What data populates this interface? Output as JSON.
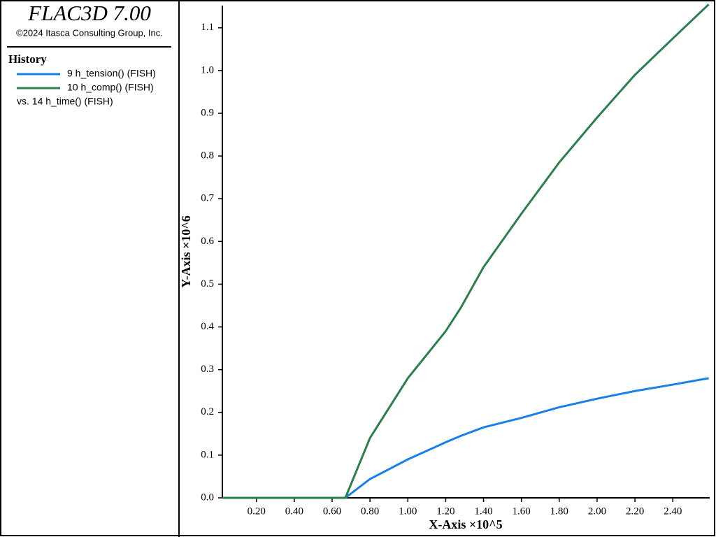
{
  "header": {
    "title": "FLAC3D 7.00",
    "copyright": "©2024 Itasca Consulting Group, Inc."
  },
  "legend": {
    "title": "History",
    "x_label": "vs. 14 h_time() (FISH)"
  },
  "chart_data": {
    "type": "line",
    "x_label": "X-Axis ×10^5",
    "y_label": "Y-Axis ×10^6",
    "x": [
      0.02,
      0.2,
      0.4,
      0.6,
      0.67,
      0.8,
      1.0,
      1.2,
      1.28,
      1.4,
      1.6,
      1.8,
      2.0,
      2.2,
      2.4,
      2.59
    ],
    "series": [
      {
        "name": "9 h_tension() (FISH)",
        "color": "#1a80e6",
        "values": [
          0,
          0,
          0,
          0,
          0,
          0.044,
          0.09,
          0.13,
          0.145,
          0.165,
          0.187,
          0.212,
          0.232,
          0.25,
          0.265,
          0.28
        ]
      },
      {
        "name": "10 h_comp() (FISH)",
        "color": "#2e7d4f",
        "values": [
          0,
          0,
          0,
          0,
          0,
          0.14,
          0.28,
          0.39,
          0.445,
          0.54,
          0.665,
          0.785,
          0.89,
          0.99,
          1.075,
          1.155
        ]
      }
    ],
    "xlim": [
      0.02,
      2.595
    ],
    "ylim": [
      0,
      1.152
    ],
    "xticks": [
      {
        "value": 0.2,
        "label": "0.20"
      },
      {
        "value": 0.4,
        "label": "0.40"
      },
      {
        "value": 0.6,
        "label": "0.60"
      },
      {
        "value": 0.8,
        "label": "0.80"
      },
      {
        "value": 1.0,
        "label": "1.00"
      },
      {
        "value": 1.2,
        "label": "1.20"
      },
      {
        "value": 1.4,
        "label": "1.40"
      },
      {
        "value": 1.6,
        "label": "1.60"
      },
      {
        "value": 1.8,
        "label": "1.80"
      },
      {
        "value": 2.0,
        "label": "2.00"
      },
      {
        "value": 2.2,
        "label": "2.20"
      },
      {
        "value": 2.4,
        "label": "2.40"
      }
    ],
    "yticks": [
      {
        "value": 0,
        "label": "0.0"
      },
      0.1,
      0.2,
      0.3,
      0.4,
      0.5,
      0.6,
      0.7,
      0.8,
      0.9,
      {
        "value": 1,
        "label": "1.0"
      },
      1.1
    ]
  }
}
